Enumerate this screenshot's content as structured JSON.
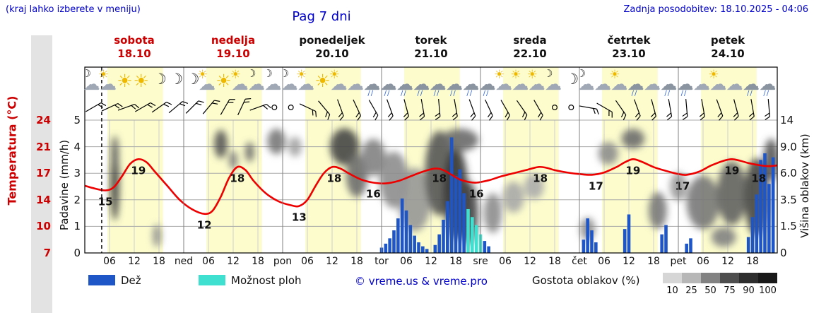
{
  "header": {
    "hint": "(kraj lahko izberete v meniju)",
    "title": "Pag 7 dni",
    "updated": "Zadnja posodobitev: 18.10.2025 - 04:06"
  },
  "days": [
    {
      "name": "sobota",
      "date": "18.10",
      "red": true
    },
    {
      "name": "nedelja",
      "date": "19.10",
      "red": true
    },
    {
      "name": "ponedeljek",
      "date": "20.10",
      "red": false
    },
    {
      "name": "torek",
      "date": "21.10",
      "red": false
    },
    {
      "name": "sreda",
      "date": "22.10",
      "red": false
    },
    {
      "name": "četrtek",
      "date": "23.10",
      "red": false
    },
    {
      "name": "petek",
      "date": "24.10",
      "red": false
    }
  ],
  "day_abbrs": [
    "ned",
    "pon",
    "tor",
    "sre",
    "čet",
    "pet"
  ],
  "axes": {
    "temp_label": "Temperatura (°C)",
    "temp_ticks": [
      "24",
      "21",
      "17",
      "14",
      "10",
      "7"
    ],
    "precip_label": "Padavine (mm/h)",
    "precip_ticks": [
      "5",
      "4",
      "3",
      "2",
      "1",
      "0"
    ],
    "cloud_label": "Višina oblakov (km)",
    "cloud_ticks": [
      "14",
      "9.0",
      "6.0",
      "3.5",
      "1.5",
      "0"
    ]
  },
  "legend": {
    "rain_label": "Dež",
    "shower_label": "Možnost ploh",
    "credit": "© vreme.us & vreme.pro",
    "cloud_density_label": "Gostota oblakov (%)",
    "density_ticks": [
      "10",
      "25",
      "50",
      "75",
      "90",
      "100"
    ]
  },
  "colors": {
    "accent_blue": "#0000cc",
    "red": "#cc0000",
    "temp_curve": "#ee0000",
    "rain": "#1e56c8",
    "shower": "#40e0d0",
    "day_band": "#fcfccd"
  },
  "icon_glyphs": {
    "sun": "☀",
    "cloud": "☁",
    "moon": "☽",
    "drops": "∕∕"
  },
  "chart_data": {
    "type": "line",
    "title": "Pag 7 dni",
    "x_unit": "hours from 18.10 00:00",
    "x_range": [
      0,
      168
    ],
    "hours_per_day": 24,
    "current_time_hour": 4.1,
    "daylight": {
      "start": 5.5,
      "end": 19
    },
    "temp_axis": {
      "label": "Temperatura (°C)",
      "ticks": [
        24,
        21,
        17,
        14,
        10,
        7
      ],
      "min": 7,
      "max": 24
    },
    "precip_axis": {
      "label": "Padavine (mm/h)",
      "ticks": [
        5,
        4,
        3,
        2,
        1,
        0
      ],
      "min": 0,
      "max": 5
    },
    "cloud_axis": {
      "label": "Višina oblakov (km)",
      "ticks": [
        14,
        9.0,
        6.0,
        3.5,
        1.5,
        0
      ]
    },
    "temperature": {
      "points": [
        [
          0,
          15.6
        ],
        [
          2,
          15.3
        ],
        [
          5,
          15.0
        ],
        [
          7,
          15.4
        ],
        [
          9,
          16.8
        ],
        [
          11,
          18.4
        ],
        [
          13,
          19.0
        ],
        [
          15,
          18.6
        ],
        [
          17,
          17.4
        ],
        [
          20,
          15.6
        ],
        [
          23,
          13.8
        ],
        [
          26,
          12.6
        ],
        [
          29,
          12.0
        ],
        [
          31,
          12.4
        ],
        [
          33,
          14.2
        ],
        [
          35,
          16.6
        ],
        [
          37,
          18.0
        ],
        [
          39,
          17.6
        ],
        [
          41,
          16.2
        ],
        [
          44,
          14.6
        ],
        [
          47,
          13.6
        ],
        [
          50,
          13.1
        ],
        [
          52,
          13.0
        ],
        [
          54,
          13.8
        ],
        [
          56,
          15.6
        ],
        [
          58,
          17.2
        ],
        [
          60,
          18.0
        ],
        [
          62,
          17.8
        ],
        [
          64,
          17.2
        ],
        [
          67,
          16.4
        ],
        [
          70,
          16.0
        ],
        [
          73,
          15.9
        ],
        [
          76,
          16.2
        ],
        [
          79,
          16.8
        ],
        [
          82,
          17.4
        ],
        [
          85,
          17.8
        ],
        [
          87,
          17.6
        ],
        [
          89,
          17.0
        ],
        [
          91,
          16.4
        ],
        [
          93,
          16.1
        ],
        [
          95,
          16.0
        ],
        [
          98,
          16.3
        ],
        [
          101,
          16.8
        ],
        [
          104,
          17.2
        ],
        [
          107,
          17.6
        ],
        [
          110,
          18.0
        ],
        [
          112,
          17.9
        ],
        [
          114,
          17.6
        ],
        [
          117,
          17.3
        ],
        [
          120,
          17.1
        ],
        [
          123,
          17.0
        ],
        [
          126,
          17.3
        ],
        [
          129,
          18.0
        ],
        [
          131,
          18.6
        ],
        [
          133,
          19.0
        ],
        [
          135,
          18.7
        ],
        [
          138,
          18.0
        ],
        [
          141,
          17.5
        ],
        [
          144,
          17.1
        ],
        [
          146,
          17.0
        ],
        [
          149,
          17.4
        ],
        [
          152,
          18.2
        ],
        [
          155,
          18.8
        ],
        [
          157,
          19.0
        ],
        [
          159,
          18.8
        ],
        [
          161,
          18.5
        ],
        [
          164,
          18.2
        ],
        [
          166,
          18.1
        ],
        [
          168,
          18.2
        ]
      ],
      "labels": [
        [
          5,
          15
        ],
        [
          13,
          19
        ],
        [
          29,
          12
        ],
        [
          37,
          18
        ],
        [
          52,
          13
        ],
        [
          60.5,
          18
        ],
        [
          70,
          16
        ],
        [
          86,
          18
        ],
        [
          95,
          16
        ],
        [
          110.5,
          18
        ],
        [
          124,
          17
        ],
        [
          133,
          19
        ],
        [
          145,
          17
        ],
        [
          157,
          19
        ],
        [
          163.5,
          18
        ]
      ]
    },
    "precipitation": [
      [
        72,
        0.2
      ],
      [
        73,
        0.35
      ],
      [
        74,
        0.55
      ],
      [
        75,
        0.85
      ],
      [
        76,
        1.3
      ],
      [
        77,
        2.05
      ],
      [
        78,
        1.6
      ],
      [
        79,
        1.05
      ],
      [
        80,
        0.65
      ],
      [
        81,
        0.4
      ],
      [
        82,
        0.25
      ],
      [
        83,
        0.15
      ],
      [
        85,
        0.3
      ],
      [
        86,
        0.7
      ],
      [
        87,
        1.25
      ],
      [
        88,
        1.95
      ],
      [
        89,
        4.35
      ],
      [
        90,
        2.9
      ],
      [
        91,
        3.15
      ],
      [
        92,
        2.25
      ],
      [
        93,
        1.65,
        "s"
      ],
      [
        94,
        1.35,
        "s"
      ],
      [
        95,
        1.05,
        "s"
      ],
      [
        96,
        0.7,
        "s"
      ],
      [
        97,
        0.45
      ],
      [
        98,
        0.25
      ],
      [
        121,
        0.5
      ],
      [
        122,
        1.3
      ],
      [
        123,
        0.85
      ],
      [
        124,
        0.4
      ],
      [
        131,
        0.9
      ],
      [
        132,
        1.45
      ],
      [
        140,
        0.7
      ],
      [
        141,
        1.05
      ],
      [
        146,
        0.35
      ],
      [
        147,
        0.55
      ],
      [
        161,
        0.6
      ],
      [
        162,
        1.35
      ],
      [
        163,
        2.2
      ],
      [
        164,
        3.5
      ],
      [
        165,
        3.75
      ],
      [
        166,
        2.6
      ],
      [
        167,
        3.6
      ]
    ],
    "clouds": [
      [
        7.3,
        0.52,
        1.1,
        52,
        80
      ],
      [
        7.3,
        0.75,
        0.9,
        25,
        65
      ],
      [
        17.5,
        0.13,
        1.0,
        16,
        45
      ],
      [
        33,
        0.82,
        1.6,
        20,
        72
      ],
      [
        36,
        0.7,
        1.0,
        13,
        55
      ],
      [
        40,
        0.76,
        1.1,
        14,
        60
      ],
      [
        46.5,
        0.84,
        2.2,
        18,
        55
      ],
      [
        51,
        0.8,
        1.6,
        14,
        35
      ],
      [
        63,
        0.8,
        3.5,
        26,
        78
      ],
      [
        66,
        0.58,
        2.6,
        30,
        60
      ],
      [
        70,
        0.72,
        3.0,
        26,
        50
      ],
      [
        75,
        0.55,
        3.5,
        40,
        45
      ],
      [
        80,
        0.4,
        4.0,
        45,
        40
      ],
      [
        86,
        0.6,
        3.5,
        60,
        72
      ],
      [
        90,
        0.45,
        3.0,
        65,
        85
      ],
      [
        93,
        0.3,
        2.4,
        45,
        80
      ],
      [
        91,
        0.85,
        4.5,
        16,
        62
      ],
      [
        99,
        0.3,
        2.2,
        28,
        45
      ],
      [
        104,
        0.42,
        2.6,
        22,
        32
      ],
      [
        109,
        0.5,
        2.4,
        18,
        30
      ],
      [
        122,
        0.18,
        1.8,
        16,
        45
      ],
      [
        127,
        0.75,
        2.4,
        16,
        45
      ],
      [
        133,
        0.86,
        2.8,
        14,
        60
      ],
      [
        139,
        0.32,
        2.2,
        26,
        55
      ],
      [
        144,
        0.5,
        2.0,
        20,
        40
      ],
      [
        150,
        0.38,
        4.0,
        38,
        55
      ],
      [
        155,
        0.12,
        3.0,
        14,
        50
      ],
      [
        157,
        0.45,
        3.6,
        45,
        65
      ],
      [
        163,
        0.42,
        3.0,
        55,
        78
      ],
      [
        166.5,
        0.7,
        1.8,
        30,
        70
      ]
    ],
    "wind": [
      [
        2,
        60
      ],
      [
        6,
        65
      ],
      [
        10,
        70
      ],
      [
        14,
        60
      ],
      [
        18,
        55
      ],
      [
        22,
        50
      ],
      [
        26,
        45
      ],
      [
        30,
        40
      ],
      [
        34,
        30
      ],
      [
        38,
        25
      ],
      [
        42,
        70
      ],
      [
        46,
        "C"
      ],
      [
        50,
        "C"
      ],
      [
        54,
        115
      ],
      [
        58,
        140
      ],
      [
        62,
        160
      ],
      [
        66,
        155
      ],
      [
        70,
        150
      ],
      [
        74,
        160
      ],
      [
        78,
        165
      ],
      [
        82,
        170
      ],
      [
        86,
        175
      ],
      [
        90,
        170
      ],
      [
        94,
        160
      ],
      [
        98,
        155
      ],
      [
        102,
        150
      ],
      [
        106,
        145
      ],
      [
        110,
        150
      ],
      [
        114,
        "C"
      ],
      [
        118,
        "C"
      ],
      [
        122,
        100
      ],
      [
        126,
        120
      ],
      [
        130,
        145
      ],
      [
        134,
        160
      ],
      [
        138,
        165
      ],
      [
        142,
        170
      ],
      [
        146,
        175
      ],
      [
        150,
        170
      ],
      [
        154,
        160
      ],
      [
        158,
        165
      ],
      [
        162,
        170
      ],
      [
        166,
        175
      ]
    ],
    "icons": [
      [
        2,
        "moon-cloud"
      ],
      [
        6,
        "sun-cloud"
      ],
      [
        10,
        "sun"
      ],
      [
        14,
        "sun"
      ],
      [
        18,
        "moon"
      ],
      [
        22,
        "moon"
      ],
      [
        26,
        "moon"
      ],
      [
        30,
        "sun-cloud"
      ],
      [
        34,
        "sun"
      ],
      [
        38,
        "sun-cloud"
      ],
      [
        42,
        "moon-cloud"
      ],
      [
        46,
        "moon-cloud"
      ],
      [
        50,
        "moon-cloud"
      ],
      [
        54,
        "sun-cloud"
      ],
      [
        58,
        "sun"
      ],
      [
        62,
        "sun-cloud"
      ],
      [
        66,
        "cloud"
      ],
      [
        70,
        "rain"
      ],
      [
        74,
        "rain"
      ],
      [
        78,
        "rain"
      ],
      [
        82,
        "rain"
      ],
      [
        86,
        "rain"
      ],
      [
        90,
        "rain"
      ],
      [
        94,
        "rain"
      ],
      [
        98,
        "rain"
      ],
      [
        102,
        "sun-cloud"
      ],
      [
        106,
        "sun-cloud"
      ],
      [
        110,
        "sun-cloud"
      ],
      [
        114,
        "moon-cloud"
      ],
      [
        118,
        "moon"
      ],
      [
        122,
        "moon-cloud"
      ],
      [
        126,
        "cloud"
      ],
      [
        130,
        "sun-cloud"
      ],
      [
        134,
        "rain"
      ],
      [
        138,
        "cloud"
      ],
      [
        142,
        "rain"
      ],
      [
        146,
        "rain"
      ],
      [
        150,
        "cloud"
      ],
      [
        154,
        "sun-cloud"
      ],
      [
        158,
        "cloud"
      ],
      [
        162,
        "rain"
      ],
      [
        166,
        "rain"
      ]
    ]
  }
}
